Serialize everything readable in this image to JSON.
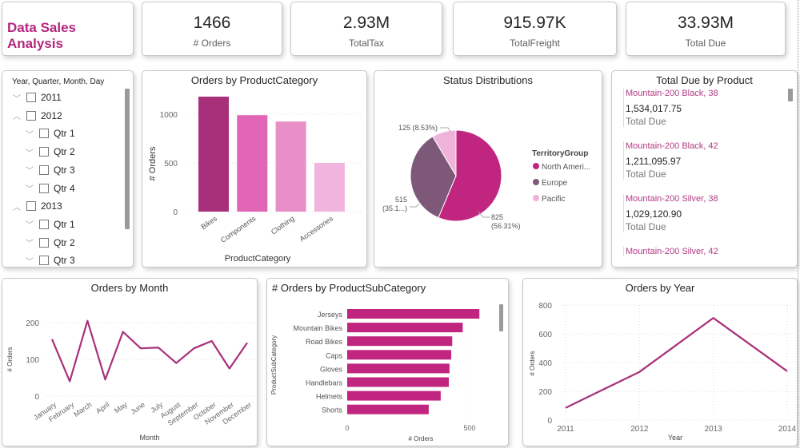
{
  "header": {
    "title": "Data Sales Analysis",
    "title_color": "#b5267f"
  },
  "kpis": [
    {
      "value": "1466",
      "label": "# Orders"
    },
    {
      "value": "2.93M",
      "label": "TotalTax"
    },
    {
      "value": "915.97K",
      "label": "TotalFreight"
    },
    {
      "value": "33.93M",
      "label": "Total Due"
    }
  ],
  "slicer": {
    "header": "Year, Quarter, Month, Day",
    "items": [
      {
        "label": "2011",
        "level": 0,
        "icon": "chevron-down-icon"
      },
      {
        "label": "2012",
        "level": 0,
        "icon": "chevron-up-icon"
      },
      {
        "label": "Qtr 1",
        "level": 1,
        "icon": "chevron-down-icon"
      },
      {
        "label": "Qtr 2",
        "level": 1,
        "icon": "chevron-down-icon"
      },
      {
        "label": "Qtr 3",
        "level": 1,
        "icon": "chevron-down-icon"
      },
      {
        "label": "Qtr 4",
        "level": 1,
        "icon": "chevron-down-icon"
      },
      {
        "label": "2013",
        "level": 0,
        "icon": "chevron-up-icon"
      },
      {
        "label": "Qtr 1",
        "level": 1,
        "icon": "chevron-down-icon"
      },
      {
        "label": "Qtr 2",
        "level": 1,
        "icon": "chevron-down-icon"
      },
      {
        "label": "Qtr 3",
        "level": 1,
        "icon": "chevron-down-icon"
      }
    ]
  },
  "total_due_list": {
    "title": "Total Due by Product",
    "items": [
      {
        "name": "Mountain-200 Black, 38",
        "amount": "1,534,017.75",
        "label": "Total Due"
      },
      {
        "name": "Mountain-200 Black, 42",
        "amount": "1,211,095.97",
        "label": "Total Due"
      },
      {
        "name": "Mountain-200 Silver, 38",
        "amount": "1,029,120.90",
        "label": "Total Due"
      },
      {
        "name": "Mountain-200 Silver, 42"
      }
    ]
  },
  "chart_data": [
    {
      "id": "category",
      "type": "bar",
      "title": "Orders by ProductCategory",
      "xlabel": "ProductCategory",
      "ylabel": "# Orders",
      "categories": [
        "Bikes",
        "Components",
        "Clothing",
        "Accessories"
      ],
      "values": [
        1180,
        990,
        925,
        500
      ],
      "colors": [
        "#a8307a",
        "#e065b5",
        "#e98fc7",
        "#f0b4dd"
      ],
      "ylim": [
        0,
        1200
      ],
      "yticks": [
        "0",
        "500",
        "1000"
      ],
      "grid": true
    },
    {
      "id": "status",
      "type": "pie",
      "title": "Status Distributions",
      "legend_title": "TerritoryGroup",
      "legend_position": "right",
      "categories": [
        "North Ameri...",
        "Europe",
        "Pacific"
      ],
      "values": [
        825,
        515,
        125
      ],
      "data_labels": [
        "825 (56.31%)",
        "515 (35.1...)",
        "125 (8.53%)"
      ],
      "colors": [
        "#c0267f",
        "#7d5878",
        "#efb3d9"
      ]
    },
    {
      "id": "month",
      "type": "line",
      "title": "Orders by Month",
      "xlabel": "Month",
      "ylabel": "# Orders",
      "categories": [
        "January",
        "February",
        "March",
        "April",
        "May",
        "June",
        "July",
        "August",
        "September",
        "October",
        "November",
        "December"
      ],
      "values": [
        155,
        40,
        205,
        45,
        175,
        130,
        132,
        90,
        130,
        150,
        75,
        145
      ],
      "ylim": [
        0,
        200
      ],
      "yticks": [
        "0",
        "100",
        "200"
      ],
      "color": "#a8307a",
      "grid": true
    },
    {
      "id": "subcategory",
      "type": "bar",
      "orientation": "horizontal",
      "title": "# Orders by ProductSubCategory",
      "xlabel": "# Orders",
      "ylabel": "ProductSubCategory",
      "categories": [
        "Jerseys",
        "Mountain Bikes",
        "Road Bikes",
        "Caps",
        "Gloves",
        "Handlebars",
        "Helmets",
        "Shorts"
      ],
      "values": [
        540,
        472,
        429,
        425,
        418,
        415,
        382,
        333
      ],
      "xticks": [
        "0",
        "500"
      ],
      "color": "#c0267f"
    },
    {
      "id": "year",
      "type": "line",
      "title": "Orders by Year",
      "xlabel": "Year",
      "ylabel": "# Orders",
      "categories": [
        "2011",
        "2012",
        "2013",
        "2014"
      ],
      "values": [
        85,
        335,
        710,
        340
      ],
      "ylim": [
        0,
        800
      ],
      "yticks": [
        "0",
        "200",
        "400",
        "600",
        "800"
      ],
      "color": "#a8307a",
      "grid": true
    }
  ]
}
